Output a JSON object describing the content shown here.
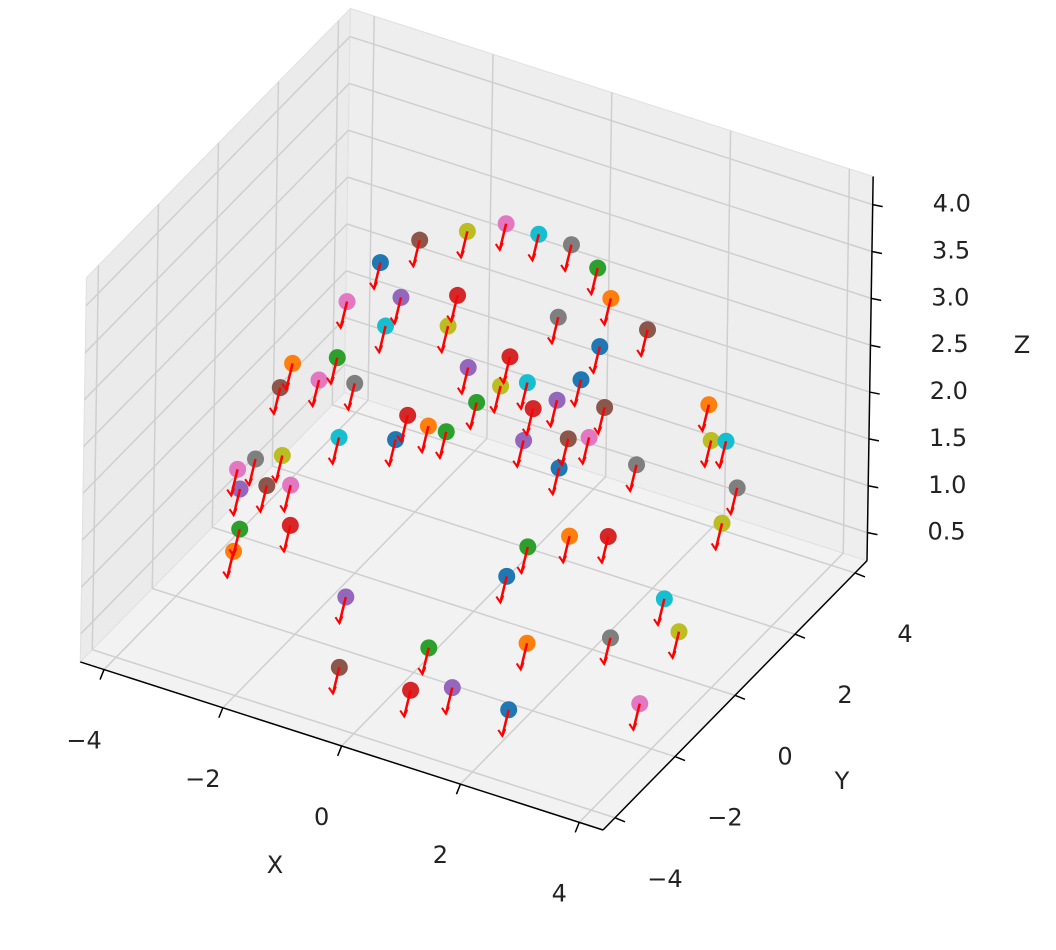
{
  "chart_data": {
    "type": "scatter3d",
    "xlabel": "X",
    "ylabel": "Y",
    "zlabel": "Z",
    "xlim": [
      -4.4,
      4.4
    ],
    "ylim": [
      -4.4,
      4.4
    ],
    "zlim": [
      0.2,
      4.3
    ],
    "xticks": [
      {
        "value": -4,
        "label": "−4"
      },
      {
        "value": -2,
        "label": "−2"
      },
      0,
      2,
      4
    ],
    "yticks": [
      {
        "value": -4,
        "label": "−4"
      },
      {
        "value": -2,
        "label": "−2"
      },
      0,
      2,
      4
    ],
    "zticks": [
      {
        "value": 0.5,
        "label": "0.5"
      },
      {
        "value": 1,
        "label": "1.0"
      },
      {
        "value": 1.5,
        "label": "1.5"
      },
      {
        "value": 2,
        "label": "2.0"
      },
      {
        "value": 2.5,
        "label": "2.5"
      },
      {
        "value": 3,
        "label": "3.0"
      },
      {
        "value": 3.5,
        "label": "3.5"
      },
      {
        "value": 4,
        "label": "4.0"
      }
    ],
    "grid": true,
    "colors": [
      "#1f77b4",
      "#ff7f0e",
      "#2ca02c",
      "#d62728",
      "#9467bd",
      "#8c564b",
      "#e377c2",
      "#7f7f7f",
      "#bcbd22",
      "#17becf"
    ],
    "quiver": {
      "color": "#ff0000",
      "u": -0.1,
      "v": 0,
      "w": -0.3
    },
    "x": [
      1.8,
      1.2,
      0,
      0.3,
      0.8,
      -0.9,
      3.4,
      2.2,
      3.0,
      2.4,
      0.1,
      0.4,
      0,
      0.9,
      -1.7,
      -1.3,
      -0.4,
      0.7,
      -0.8,
      0.15,
      -2.1,
      1.3,
      0.75,
      -0.7,
      -1.4,
      1.7,
      -2.5,
      0.4,
      -0.9,
      -1.7,
      1.3,
      -3,
      -2.5,
      -0.3,
      -0.7,
      -3.2,
      -2.8,
      -2.3,
      -0.4,
      -0.1,
      0.55,
      2.5,
      -0.5,
      0.3,
      0.5,
      1.2,
      -3.3,
      -3.2,
      -2.9,
      -2.4,
      -1.65,
      -1.4,
      -1.1,
      -1.8,
      0,
      0.55,
      0.8,
      1.75,
      2.4,
      2.6,
      0.8,
      -2.9,
      -3.1,
      -2.5,
      -3.6,
      -3.3,
      -3.0,
      2.75,
      3.0
    ],
    "y": [
      -2.4,
      -0.6,
      -1.5,
      -2.7,
      -2.3,
      -2.7,
      -1.2,
      0.2,
      0.9,
      1.6,
      0.9,
      2.4,
      1.8,
      2.7,
      -0.9,
      0.6,
      1.7,
      1.7,
      1.2,
      1.7,
      0.9,
      1.85,
      2.5,
      0.7,
      0.2,
      2.3,
      0.6,
      1.9,
      0.8,
      0.3,
      1.5,
      -0.2,
      0.3,
      1.7,
      1.1,
      -0.2,
      0.3,
      0.5,
      1.6,
      1.9,
      2.4,
      2.8,
      1.0,
      1.3,
      1.7,
      1.9,
      -1.4,
      -1.0,
      -0.7,
      0.2,
      0.6,
      1.2,
      1.2,
      1.3,
      1.6,
      2.0,
      2.2,
      1.9,
      3.1,
      3.2,
      1.2,
      -2.3,
      -1.7,
      -1.2,
      -0.7,
      -0.4,
      -0.2,
      3.3,
      2.3
    ],
    "z": [
      0.3,
      0.3,
      0.3,
      0.3,
      0.3,
      0.3,
      0.3,
      0.3,
      0.3,
      0.3,
      0.3,
      0.3,
      0.3,
      0.3,
      0.3,
      3.7,
      3.7,
      3.7,
      3.7,
      3.7,
      3.2,
      3.2,
      3.2,
      3.2,
      3.2,
      2.8,
      2.8,
      2.8,
      2.8,
      2.8,
      2.8,
      2.3,
      2.3,
      2.3,
      2.3,
      2.0,
      2.0,
      2.0,
      2.0,
      2.0,
      2.0,
      2.0,
      2.0,
      2.0,
      2.0,
      2.0,
      1.5,
      1.5,
      1.5,
      1.5,
      1.5,
      1.5,
      1.5,
      1.5,
      1.5,
      1.5,
      1.5,
      1.5,
      1.5,
      1.5,
      1.5,
      1.0,
      1.0,
      1.0,
      1.0,
      1.0,
      1.0,
      1.0,
      1.0
    ]
  }
}
